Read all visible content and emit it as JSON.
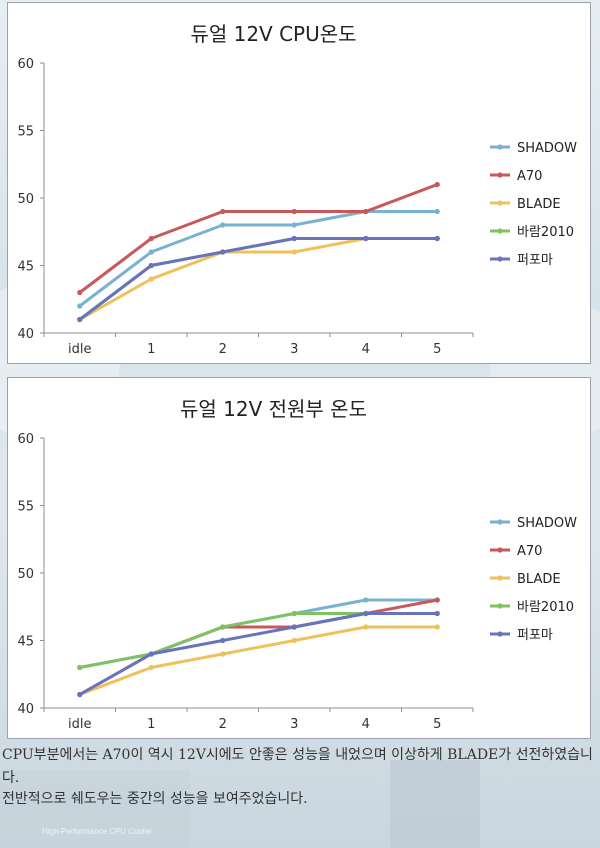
{
  "chart_data": [
    {
      "type": "line",
      "title": "듀얼 12V CPU온도",
      "categories": [
        "idle",
        "1",
        "2",
        "3",
        "4",
        "5"
      ],
      "ylim": [
        40,
        60
      ],
      "yticks": [
        "40",
        "45",
        "50",
        "55",
        "60"
      ],
      "grid": false,
      "legend_position": "right",
      "series": [
        {
          "name": "SHADOW",
          "color": "#77b2cf",
          "values": [
            42,
            46,
            48,
            48,
            49,
            49
          ]
        },
        {
          "name": "A70",
          "color": "#c9585a",
          "values": [
            43,
            47,
            49,
            49,
            49,
            51
          ]
        },
        {
          "name": "BLADE",
          "color": "#eec15a",
          "values": [
            41,
            44,
            46,
            46,
            47,
            47
          ]
        },
        {
          "name": "바람2010",
          "color": "#7ec262",
          "values": [
            41,
            45,
            46,
            47,
            47,
            47
          ]
        },
        {
          "name": "퍼포마",
          "color": "#6773bd",
          "values": [
            41,
            45,
            46,
            47,
            47,
            47
          ]
        }
      ]
    },
    {
      "type": "line",
      "title": "듀얼 12V 전원부 온도",
      "categories": [
        "idle",
        "1",
        "2",
        "3",
        "4",
        "5"
      ],
      "ylim": [
        40,
        60
      ],
      "yticks": [
        "40",
        "45",
        "50",
        "55",
        "60"
      ],
      "grid": false,
      "legend_position": "right",
      "series": [
        {
          "name": "SHADOW",
          "color": "#77b2cf",
          "values": [
            43,
            44,
            46,
            47,
            48,
            48
          ]
        },
        {
          "name": "A70",
          "color": "#c9585a",
          "values": [
            41,
            44,
            46,
            46,
            47,
            48
          ]
        },
        {
          "name": "BLADE",
          "color": "#eec15a",
          "values": [
            41,
            43,
            44,
            45,
            46,
            46
          ]
        },
        {
          "name": "바람2010",
          "color": "#7ec262",
          "values": [
            43,
            44,
            46,
            47,
            47,
            47
          ]
        },
        {
          "name": "퍼포마",
          "color": "#6773bd",
          "values": [
            41,
            44,
            45,
            46,
            47,
            47
          ]
        }
      ]
    }
  ],
  "text": {
    "paragraph1": "CPU부분에서는 A70이 역시 12V시에도 안좋은 성능을 내었으며 이상하게 BLADE가 선전하였습니다.",
    "paragraph2": "전반적으로 쉐도우는 중간의 성능을 보여주었습니다.",
    "watermark": "High-Performance CPU Cooler"
  }
}
